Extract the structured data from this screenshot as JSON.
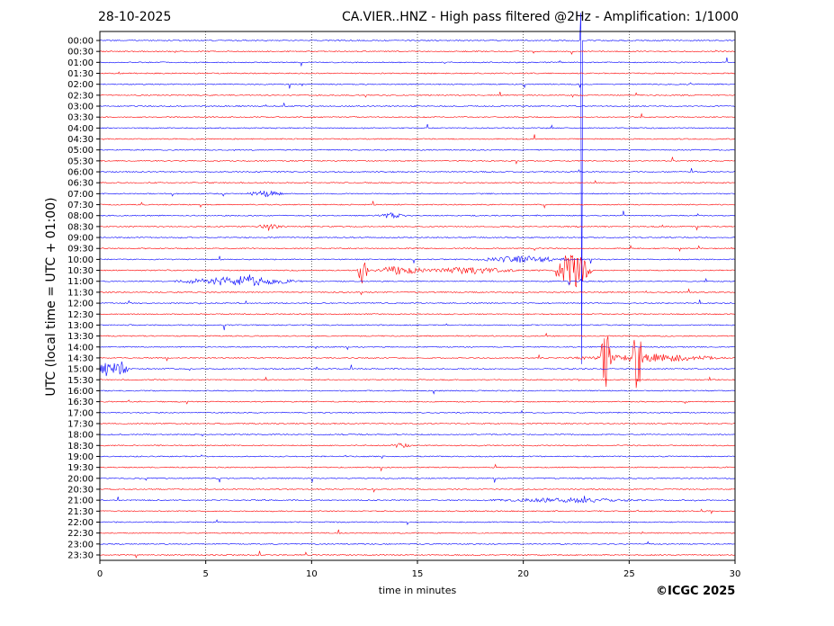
{
  "header": {
    "date": "28-10-2025",
    "title": "CA.VIER..HNZ - High pass filtered @2Hz - Amplification: 1/1000"
  },
  "footer": {
    "copyright": "©ICGC 2025"
  },
  "chart_data": {
    "type": "line",
    "title": "CA.VIER..HNZ - High pass filtered @2Hz - Amplification: 1/1000",
    "xlabel": "time in minutes",
    "ylabel": "UTC (local time = UTC + 01:00)",
    "xlim": [
      0,
      30
    ],
    "x_ticks": [
      0,
      5,
      10,
      15,
      20,
      25,
      30
    ],
    "vertical_grid": [
      5,
      10,
      15,
      20,
      25
    ],
    "y_ticks": [
      "00:00",
      "00:30",
      "01:00",
      "01:30",
      "02:00",
      "02:30",
      "03:00",
      "03:30",
      "04:00",
      "04:30",
      "05:00",
      "05:30",
      "06:00",
      "06:30",
      "07:00",
      "07:30",
      "08:00",
      "08:30",
      "09:00",
      "09:30",
      "10:00",
      "10:30",
      "11:00",
      "11:30",
      "12:00",
      "12:30",
      "13:00",
      "13:30",
      "14:00",
      "14:30",
      "15:00",
      "15:30",
      "16:00",
      "16:30",
      "17:00",
      "17:30",
      "18:00",
      "18:30",
      "19:00",
      "19:30",
      "20:00",
      "20:30",
      "21:00",
      "21:30",
      "22:00",
      "22:30",
      "23:00",
      "23:30"
    ],
    "trace_colors": [
      "#0000ff",
      "#ff0000"
    ],
    "events": [
      {
        "row": "07:00",
        "minute": 7.8,
        "amplitude": 0.25,
        "duration": 1.0
      },
      {
        "row": "08:00",
        "minute": 13.8,
        "amplitude": 0.25,
        "duration": 0.8
      },
      {
        "row": "08:30",
        "minute": 8.0,
        "amplitude": 0.2,
        "duration": 0.8
      },
      {
        "row": "10:00",
        "minute": 20.0,
        "amplitude": 0.3,
        "duration": 2.5
      },
      {
        "row": "10:30",
        "minute": 12.4,
        "amplitude": 1.5,
        "duration": 0.3
      },
      {
        "row": "10:30",
        "minute": 14.2,
        "amplitude": 0.4,
        "duration": 1.6
      },
      {
        "row": "10:30",
        "minute": 17.5,
        "amplitude": 0.3,
        "duration": 2.5
      },
      {
        "row": "10:30",
        "minute": 22.3,
        "amplitude": 2.0,
        "duration": 1.0
      },
      {
        "row": "11:00",
        "minute": 6.5,
        "amplitude": 0.45,
        "duration": 3.2
      },
      {
        "row": "14:30",
        "minute": 23.9,
        "amplitude": 3.5,
        "duration": 0.3
      },
      {
        "row": "14:30",
        "minute": 25.4,
        "amplitude": 5.0,
        "duration": 0.3
      },
      {
        "row": "14:30",
        "minute": 26.0,
        "amplitude": 0.35,
        "duration": 4.0
      },
      {
        "row": "15:00",
        "minute": 0.3,
        "amplitude": 0.9,
        "duration": 0.8
      },
      {
        "row": "15:00",
        "minute": 1.0,
        "amplitude": 0.7,
        "duration": 0.4
      },
      {
        "row": "18:30",
        "minute": 14.2,
        "amplitude": 0.2,
        "duration": 0.6
      },
      {
        "row": "21:00",
        "minute": 22.0,
        "amplitude": 0.2,
        "duration": 4.0
      },
      {
        "row": "00:00",
        "minute": 22.75,
        "amplitude": 38.0,
        "duration": 0.05
      }
    ]
  }
}
